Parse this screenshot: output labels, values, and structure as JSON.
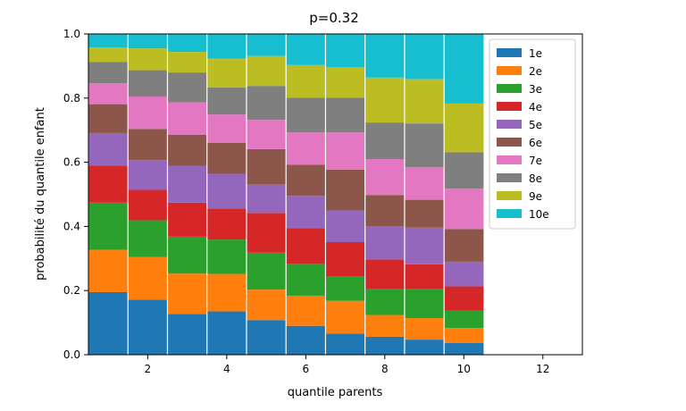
{
  "chart_data": {
    "type": "bar",
    "stacked": true,
    "title": "p=0.32",
    "xlabel": "quantile parents",
    "ylabel": "probabilité du quantile enfant",
    "xlim": [
      0.5,
      13
    ],
    "ylim": [
      0,
      1
    ],
    "xticks": [
      "2",
      "4",
      "6",
      "8",
      "10",
      "12"
    ],
    "yticks": [
      "0.0",
      "0.2",
      "0.4",
      "0.6",
      "0.8",
      "1.0"
    ],
    "legend_position": "top-right",
    "categories": [
      1,
      2,
      3,
      4,
      5,
      6,
      7,
      8,
      9,
      10
    ],
    "series": [
      {
        "name": "1e",
        "color": "#1f77b4",
        "values": [
          0.195,
          0.172,
          0.127,
          0.135,
          0.108,
          0.09,
          0.066,
          0.056,
          0.047,
          0.037
        ]
      },
      {
        "name": "2e",
        "color": "#ff7f0e",
        "values": [
          0.132,
          0.133,
          0.126,
          0.117,
          0.095,
          0.094,
          0.102,
          0.068,
          0.067,
          0.046
        ]
      },
      {
        "name": "3e",
        "color": "#2ca02c",
        "values": [
          0.147,
          0.114,
          0.115,
          0.107,
          0.115,
          0.1,
          0.076,
          0.08,
          0.09,
          0.055
        ]
      },
      {
        "name": "4e",
        "color": "#d62728",
        "values": [
          0.115,
          0.095,
          0.106,
          0.097,
          0.124,
          0.111,
          0.107,
          0.093,
          0.078,
          0.075
        ]
      },
      {
        "name": "5e",
        "color": "#9467bd",
        "values": [
          0.102,
          0.093,
          0.115,
          0.108,
          0.088,
          0.1,
          0.099,
          0.104,
          0.114,
          0.077
        ]
      },
      {
        "name": "6e",
        "color": "#8c564b",
        "values": [
          0.09,
          0.097,
          0.097,
          0.097,
          0.111,
          0.097,
          0.127,
          0.097,
          0.087,
          0.102
        ]
      },
      {
        "name": "7e",
        "color": "#e377c2",
        "values": [
          0.065,
          0.101,
          0.101,
          0.088,
          0.091,
          0.101,
          0.116,
          0.112,
          0.102,
          0.126
        ]
      },
      {
        "name": "8e",
        "color": "#7f7f7f",
        "values": [
          0.067,
          0.082,
          0.093,
          0.084,
          0.106,
          0.108,
          0.108,
          0.114,
          0.136,
          0.113
        ]
      },
      {
        "name": "9e",
        "color": "#bcbd22",
        "values": [
          0.045,
          0.068,
          0.064,
          0.09,
          0.093,
          0.102,
          0.096,
          0.14,
          0.138,
          0.152
        ]
      },
      {
        "name": "10e",
        "color": "#17becf",
        "values": [
          0.042,
          0.045,
          0.056,
          0.077,
          0.069,
          0.097,
          0.103,
          0.136,
          0.141,
          0.217
        ]
      }
    ]
  }
}
